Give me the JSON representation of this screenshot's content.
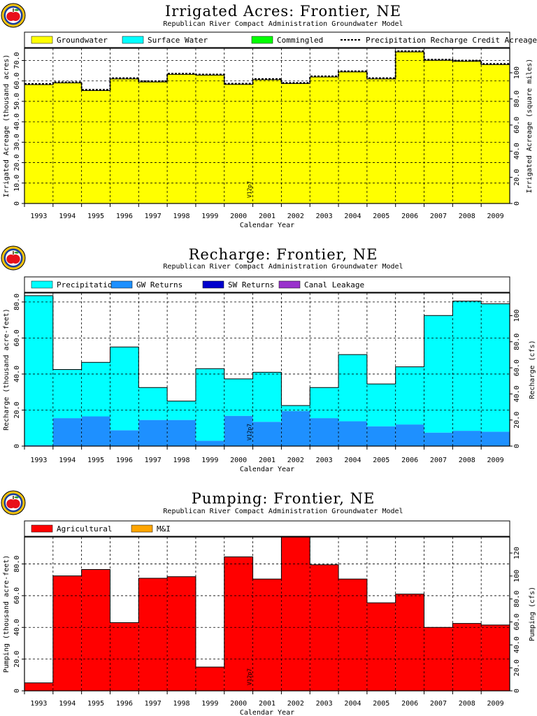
{
  "colors": {
    "groundwater": "#ffff00",
    "surface_water": "#00ffff",
    "commingled": "#00ff00",
    "precipitation": "#00ffff",
    "gw_returns": "#1e90ff",
    "sw_returns": "#0000cd",
    "canal_leakage": "#9932cc",
    "agricultural": "#ff0000",
    "mi": "#ffa500",
    "logo_red": "#e8101a",
    "logo_ring": "#1b3f9a",
    "logo_yellow": "#f4c20d"
  },
  "version_label": "V12p7",
  "chart_data": [
    {
      "type": "bar",
      "title": "Irrigated Acres: Frontier, NE",
      "subtitle": "Republican River Compact Administration Groundwater Model",
      "xlabel": "Calendar Year",
      "ylabel": "Irrigated Acreage (thousand acres)",
      "ylabel_right": "Irrigated Acreage (square miles)",
      "categories": [
        "1993",
        "1994",
        "1995",
        "1996",
        "1997",
        "1998",
        "1999",
        "2000",
        "2001",
        "2002",
        "2003",
        "2004",
        "2005",
        "2006",
        "2007",
        "2008",
        "2009"
      ],
      "ylim": [
        0,
        76
      ],
      "yticks": [
        0,
        10,
        20,
        30,
        40,
        50,
        60,
        70
      ],
      "ytick_labels": [
        "0",
        "10.0",
        "20.0",
        "30.0",
        "40.0",
        "50.0",
        "60.0",
        "70.0"
      ],
      "yticks_right": [
        0,
        20,
        40,
        60,
        80,
        100
      ],
      "ytick_labels_right": [
        "0",
        "20.0",
        "40.0",
        "60.0",
        "80.0",
        "100"
      ],
      "right_scale": 0.64,
      "legend": [
        {
          "label": "Groundwater",
          "kind": "box",
          "color_key": "groundwater"
        },
        {
          "label": "Surface Water",
          "kind": "box",
          "color_key": "surface_water"
        },
        {
          "label": "Commingled",
          "kind": "box",
          "color_key": "commingled"
        },
        {
          "label": "Precipitation Recharge Credit Acreage",
          "kind": "dash"
        }
      ],
      "series": [
        {
          "name": "Groundwater",
          "color_key": "groundwater",
          "values": [
            58.2,
            59.0,
            55.3,
            61.0,
            59.5,
            63.2,
            62.8,
            58.3,
            60.6,
            58.7,
            61.9,
            64.4,
            61.0,
            74.2,
            70.1,
            69.6,
            68.0
          ]
        },
        {
          "name": "Surface Water",
          "color_key": "surface_water",
          "values": [
            0,
            0,
            0,
            0,
            0,
            0,
            0,
            0,
            0,
            0,
            0,
            0,
            0,
            0,
            0,
            0,
            0
          ]
        },
        {
          "name": "Commingled",
          "color_key": "commingled",
          "values": [
            0,
            0,
            0,
            0,
            0,
            0,
            0,
            0,
            0,
            0,
            0,
            0,
            0,
            0,
            0,
            0,
            0
          ]
        }
      ],
      "line": {
        "name": "Precipitation Recharge Credit Acreage",
        "values": [
          58.6,
          59.4,
          55.7,
          61.4,
          59.9,
          63.6,
          63.2,
          58.7,
          61.0,
          59.1,
          62.3,
          64.8,
          61.4,
          74.6,
          70.5,
          70.0,
          68.4
        ]
      },
      "grid": true
    },
    {
      "type": "bar",
      "title": "Recharge: Frontier, NE",
      "subtitle": "Republican River Compact Administration Groundwater Model",
      "xlabel": "Calendar Year",
      "ylabel": "Recharge (thousand acre-feet)",
      "ylabel_right": "Recharge (cfs)",
      "categories": [
        "1993",
        "1994",
        "1995",
        "1996",
        "1997",
        "1998",
        "1999",
        "2000",
        "2001",
        "2002",
        "2003",
        "2004",
        "2005",
        "2006",
        "2007",
        "2008",
        "2009"
      ],
      "ylim": [
        0,
        85
      ],
      "yticks": [
        0,
        20,
        40,
        60,
        80
      ],
      "ytick_labels": [
        "0",
        "20.0",
        "40.0",
        "60.0",
        "80.0"
      ],
      "yticks_right": [
        0,
        20,
        40,
        60,
        80,
        100
      ],
      "ytick_labels_right": [
        "0",
        "20.0",
        "40.0",
        "60.0",
        "80.0",
        "100"
      ],
      "right_scale": 0.724,
      "legend": [
        {
          "label": "Precipitation",
          "kind": "box",
          "color_key": "precipitation"
        },
        {
          "label": "GW Returns",
          "kind": "box",
          "color_key": "gw_returns"
        },
        {
          "label": "SW Returns",
          "kind": "box",
          "color_key": "sw_returns"
        },
        {
          "label": "Canal Leakage",
          "kind": "box",
          "color_key": "canal_leakage"
        }
      ],
      "series": [
        {
          "name": "GW Returns",
          "color_key": "gw_returns",
          "values": [
            0.5,
            15.5,
            16.5,
            8.8,
            14.5,
            14.5,
            3.0,
            16.8,
            13.5,
            19.5,
            15.5,
            13.8,
            11.0,
            12.0,
            7.5,
            8.5,
            8.0
          ]
        },
        {
          "name": "SW Returns",
          "color_key": "sw_returns",
          "values": [
            0,
            0,
            0,
            0,
            0,
            0,
            0,
            0,
            0,
            0,
            0,
            0,
            0,
            0,
            0,
            0,
            0
          ]
        },
        {
          "name": "Canal Leakage",
          "color_key": "canal_leakage",
          "values": [
            0,
            0,
            0,
            0,
            0,
            0,
            0,
            0,
            0,
            0,
            0,
            0,
            0,
            0,
            0,
            0,
            0
          ]
        },
        {
          "name": "Precipitation",
          "color_key": "precipitation",
          "values": [
            83.0,
            27.0,
            30.0,
            46.2,
            18.0,
            10.5,
            40.0,
            20.5,
            27.5,
            3.0,
            17.0,
            37.0,
            23.5,
            32.0,
            65.0,
            72.0,
            71.0
          ]
        }
      ],
      "grid": true
    },
    {
      "type": "bar",
      "title": "Pumping: Frontier, NE",
      "subtitle": "Republican River Compact Administration Groundwater Model",
      "xlabel": "Calendar Year",
      "ylabel": "Pumping (thousand acre-feet)",
      "ylabel_right": "Pumping (cfs)",
      "categories": [
        "1993",
        "1994",
        "1995",
        "1996",
        "1997",
        "1998",
        "1999",
        "2000",
        "2001",
        "2002",
        "2003",
        "2004",
        "2005",
        "2006",
        "2007",
        "2008",
        "2009"
      ],
      "ylim": [
        0,
        97
      ],
      "yticks": [
        0,
        20,
        40,
        60,
        80
      ],
      "ytick_labels": [
        "0",
        "20.0",
        "40.0",
        "60.0",
        "80.0"
      ],
      "yticks_right": [
        0,
        20,
        40,
        60,
        80,
        100,
        120
      ],
      "ytick_labels_right": [
        "0",
        "20.0",
        "40.0",
        "60.0",
        "80.0",
        "100",
        "120"
      ],
      "right_scale": 0.724,
      "legend": [
        {
          "label": "Agricultural",
          "kind": "box",
          "color_key": "agricultural"
        },
        {
          "label": "M&I",
          "kind": "box",
          "color_key": "mi"
        }
      ],
      "series": [
        {
          "name": "Agricultural",
          "color_key": "agricultural",
          "values": [
            5.0,
            72.5,
            76.5,
            43.0,
            71.0,
            72.0,
            15.0,
            84.5,
            70.5,
            97.0,
            79.5,
            70.5,
            55.5,
            61.0,
            40.0,
            42.5,
            41.5
          ]
        },
        {
          "name": "M&I",
          "color_key": "mi",
          "values": [
            0,
            0,
            0,
            0,
            0,
            0,
            0,
            0,
            0,
            0,
            0,
            0,
            0,
            0,
            0,
            0,
            0
          ]
        }
      ],
      "grid": true
    }
  ]
}
